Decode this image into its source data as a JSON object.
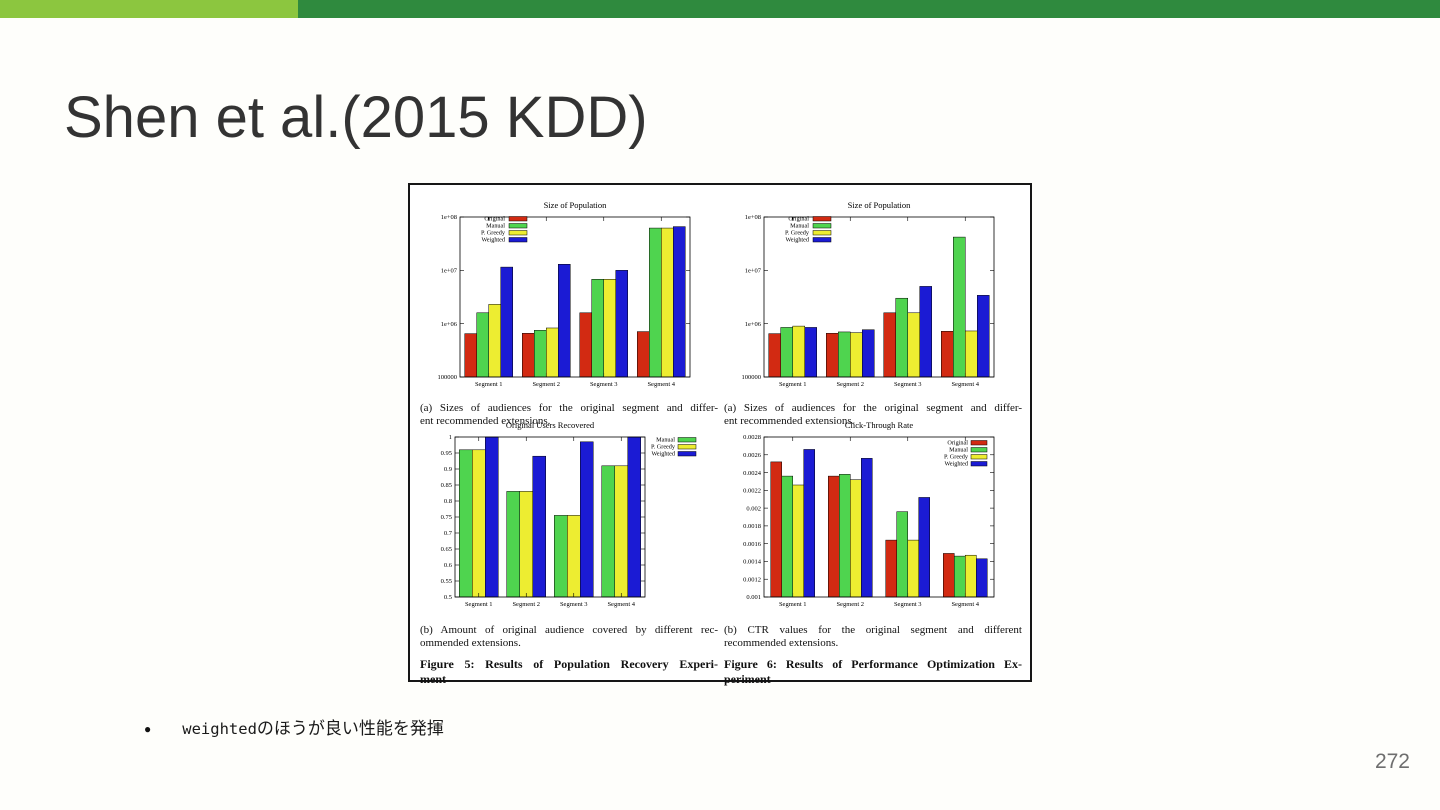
{
  "slide": {
    "title": "Shen et al.(2015 KDD)",
    "page_number": "272",
    "bullet": {
      "marker": "●",
      "code_text": "weighted",
      "jp_text": "のほうが良い性能を発揮"
    },
    "colors": {
      "accent_light": "#8cc63f",
      "accent_dark": "#2f8a3e",
      "page_number": "#6e6e6e",
      "title": "#333333"
    }
  },
  "figure": {
    "captions": {
      "top_left": [
        "(a) Sizes of audiences for the original segment and differ-",
        "ent recommended extensions."
      ],
      "top_right": [
        "(a) Sizes of audiences for the original segment and differ-",
        "ent recommended extensions."
      ],
      "bottom_left": [
        "(b) Amount of original audience covered by different rec-",
        "ommended extensions."
      ],
      "bottom_right": [
        "(b) CTR values for the original segment and different",
        "recommended extensions."
      ],
      "figure5": [
        "Figure 5: Results of Population Recovery Experi-",
        "ment"
      ],
      "figure6": [
        "Figure 6: Results of Performance Optimization Ex-",
        "periment"
      ]
    }
  },
  "chart_data": [
    {
      "type": "bar",
      "title": "Size of Population",
      "y_scale": "log",
      "ylim": [
        100000,
        100000000
      ],
      "yticks": [
        {
          "v": 100000000,
          "label": "1e+08"
        },
        {
          "v": 10000000,
          "label": "1e+07"
        },
        {
          "v": 1000000,
          "label": "1e+06"
        },
        {
          "v": 100000,
          "label": "100000"
        }
      ],
      "categories": [
        "Segment 1",
        "Segment 2",
        "Segment 3",
        "Segment 4"
      ],
      "series": [
        {
          "name": "Original",
          "color": "#d22a12",
          "values": [
            650000,
            660000,
            1600000,
            710000
          ]
        },
        {
          "name": "Manual",
          "color": "#4fd44f",
          "values": [
            1600000,
            750000,
            6800000,
            62000000
          ]
        },
        {
          "name": "P. Greedy",
          "color": "#eded31",
          "values": [
            2300000,
            830000,
            6800000,
            62000000
          ]
        },
        {
          "name": "Weighted",
          "color": "#1b1bd4",
          "values": [
            11500000,
            13000000,
            10000000,
            66000000
          ]
        }
      ],
      "legend_position": "top-left",
      "grid": false
    },
    {
      "type": "bar",
      "title": "Size of Population",
      "y_scale": "log",
      "ylim": [
        100000,
        100000000
      ],
      "yticks": [
        {
          "v": 100000000,
          "label": "1e+08"
        },
        {
          "v": 10000000,
          "label": "1e+07"
        },
        {
          "v": 1000000,
          "label": "1e+06"
        },
        {
          "v": 100000,
          "label": "100000"
        }
      ],
      "categories": [
        "Segment 1",
        "Segment 2",
        "Segment 3",
        "Segment 4"
      ],
      "series": [
        {
          "name": "Original",
          "color": "#d22a12",
          "values": [
            650000,
            660000,
            1600000,
            720000
          ]
        },
        {
          "name": "Manual",
          "color": "#4fd44f",
          "values": [
            850000,
            700000,
            3000000,
            42000000
          ]
        },
        {
          "name": "P. Greedy",
          "color": "#eded31",
          "values": [
            900000,
            680000,
            1600000,
            730000
          ]
        },
        {
          "name": "Weighted",
          "color": "#1b1bd4",
          "values": [
            850000,
            770000,
            5000000,
            3400000
          ]
        }
      ],
      "legend_position": "top-left",
      "grid": false
    },
    {
      "type": "bar",
      "title": "Original Users Recovered",
      "y_scale": "linear",
      "ylim": [
        0.5,
        1.0
      ],
      "yticks": [
        {
          "v": 1.0,
          "label": "1"
        },
        {
          "v": 0.95,
          "label": "0.95"
        },
        {
          "v": 0.9,
          "label": "0.9"
        },
        {
          "v": 0.85,
          "label": "0.85"
        },
        {
          "v": 0.8,
          "label": "0.8"
        },
        {
          "v": 0.75,
          "label": "0.75"
        },
        {
          "v": 0.7,
          "label": "0.7"
        },
        {
          "v": 0.65,
          "label": "0.65"
        },
        {
          "v": 0.6,
          "label": "0.6"
        },
        {
          "v": 0.55,
          "label": "0.55"
        },
        {
          "v": 0.5,
          "label": "0.5"
        }
      ],
      "categories": [
        "Segment 1",
        "Segment 2",
        "Segment 3",
        "Segment 4"
      ],
      "series": [
        {
          "name": "Manual",
          "color": "#4fd44f",
          "values": [
            0.96,
            0.83,
            0.755,
            0.91
          ]
        },
        {
          "name": "P. Greedy",
          "color": "#eded31",
          "values": [
            0.96,
            0.83,
            0.755,
            0.91
          ]
        },
        {
          "name": "Weighted",
          "color": "#1b1bd4",
          "values": [
            1.0,
            0.94,
            0.985,
            1.0
          ]
        }
      ],
      "legend_position": "right-outside",
      "grid": false
    },
    {
      "type": "bar",
      "title": "Click-Through Rate",
      "y_scale": "linear",
      "ylim": [
        0.001,
        0.0028
      ],
      "yticks": [
        {
          "v": 0.0028,
          "label": "0.0028"
        },
        {
          "v": 0.0026,
          "label": "0.0026"
        },
        {
          "v": 0.0024,
          "label": "0.0024"
        },
        {
          "v": 0.0022,
          "label": "0.0022"
        },
        {
          "v": 0.002,
          "label": "0.002"
        },
        {
          "v": 0.0018,
          "label": "0.0018"
        },
        {
          "v": 0.0016,
          "label": "0.0016"
        },
        {
          "v": 0.0014,
          "label": "0.0014"
        },
        {
          "v": 0.0012,
          "label": "0.0012"
        },
        {
          "v": 0.001,
          "label": "0.001"
        }
      ],
      "categories": [
        "Segment 1",
        "Segment 2",
        "Segment 3",
        "Segment 4"
      ],
      "series": [
        {
          "name": "Original",
          "color": "#d22a12",
          "values": [
            0.00252,
            0.00236,
            0.00164,
            0.00149
          ]
        },
        {
          "name": "Manual",
          "color": "#4fd44f",
          "values": [
            0.00236,
            0.00238,
            0.00196,
            0.00146
          ]
        },
        {
          "name": "P. Greedy",
          "color": "#eded31",
          "values": [
            0.00226,
            0.00232,
            0.00164,
            0.00147
          ]
        },
        {
          "name": "Weighted",
          "color": "#1b1bd4",
          "values": [
            0.00266,
            0.00256,
            0.00212,
            0.00143
          ]
        }
      ],
      "legend_position": "top-right",
      "grid": false
    }
  ]
}
